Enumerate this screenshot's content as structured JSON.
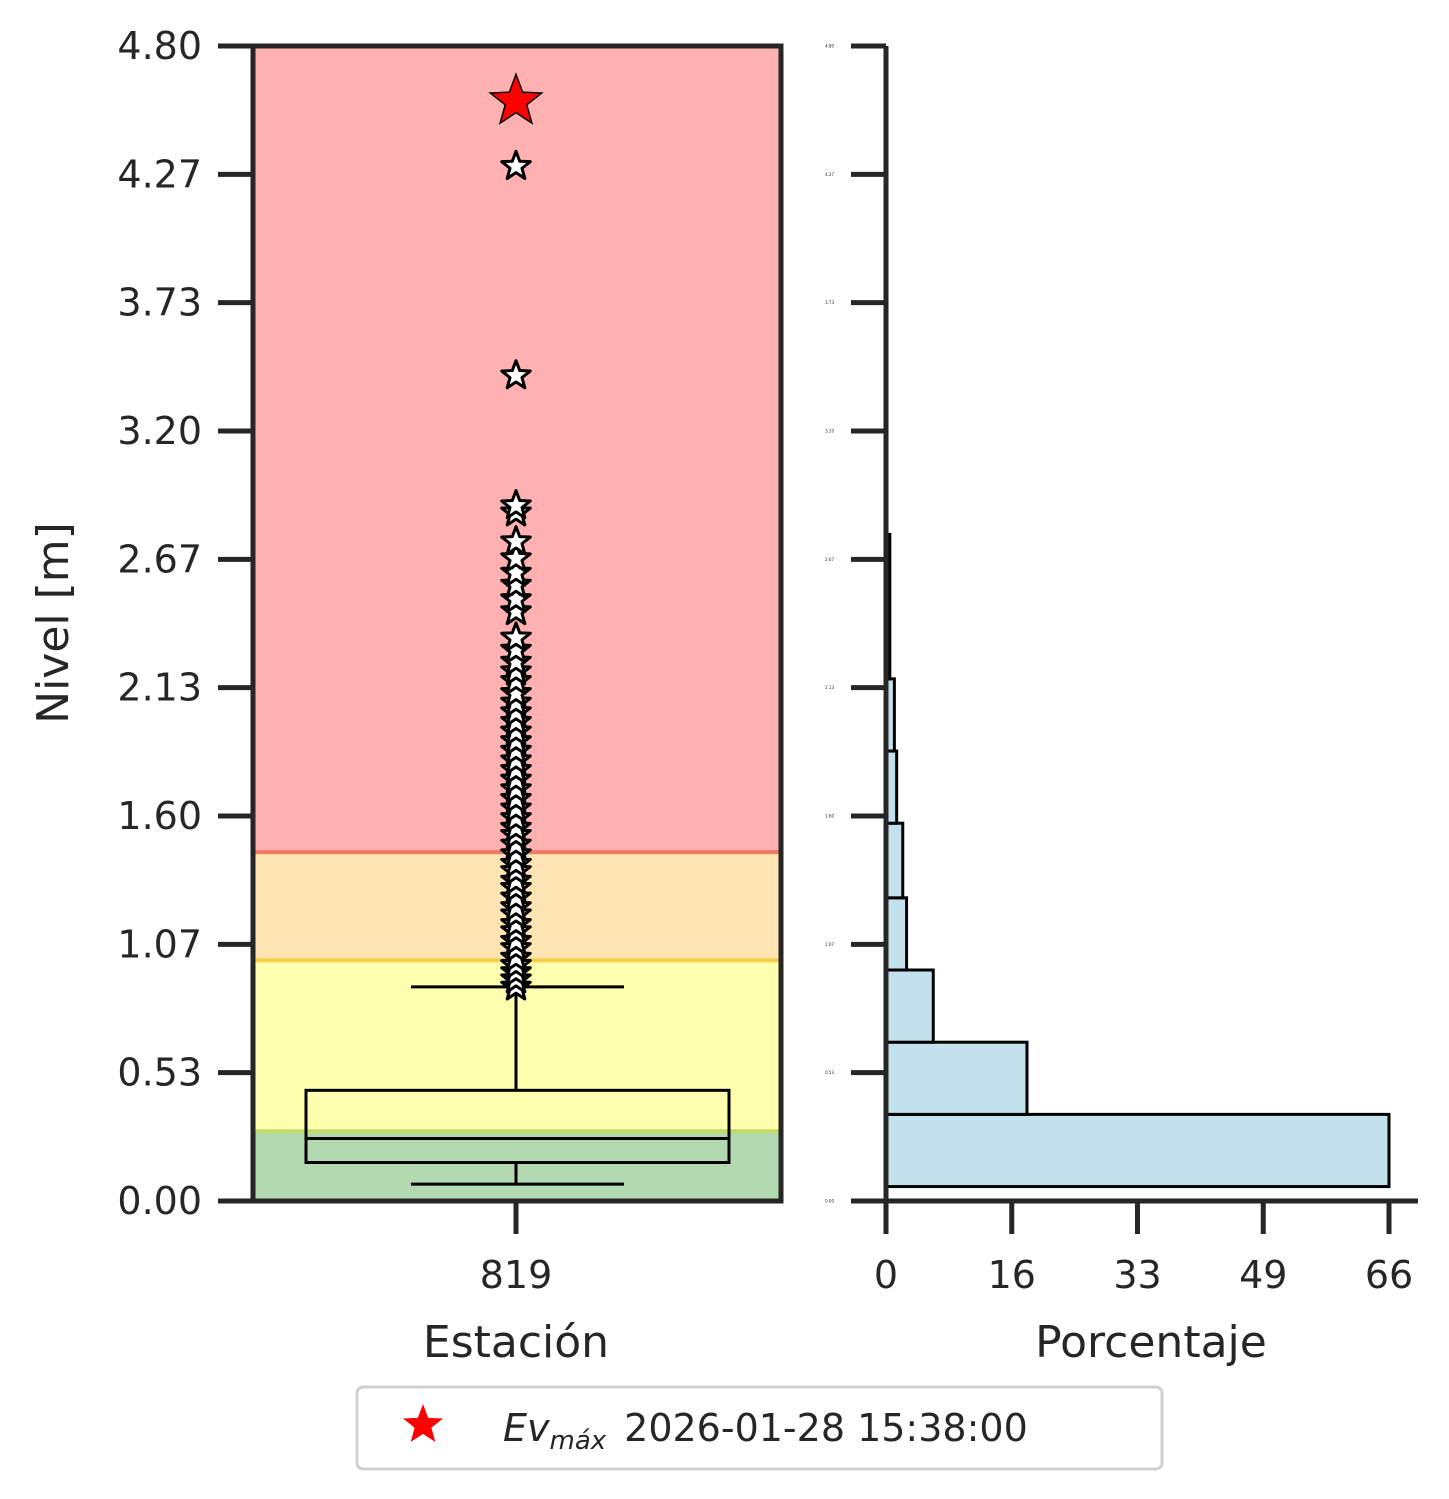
{
  "chart_data": [
    {
      "type": "boxplot",
      "xlabel": "Estación",
      "ylabel": "Nivel [m]",
      "categories": [
        "819"
      ],
      "ylim": [
        0.0,
        4.8
      ],
      "yticks": [
        "0.00",
        "0.53",
        "1.07",
        "1.60",
        "2.13",
        "2.67",
        "3.20",
        "3.73",
        "4.27",
        "4.80"
      ],
      "bands": [
        {
          "from": 0.0,
          "to": 0.29,
          "color": "#b3d9b0"
        },
        {
          "from": 0.29,
          "to": 1.0,
          "color": "#ffffb0"
        },
        {
          "from": 1.0,
          "to": 1.45,
          "color": "#ffe4b3"
        },
        {
          "from": 1.45,
          "to": 4.8,
          "color": "#ffb1b1"
        }
      ],
      "band_lines": [
        {
          "value": 0.29,
          "color": "#c5d96b"
        },
        {
          "value": 1.0,
          "color": "#f5cf4a"
        },
        {
          "value": 1.45,
          "color": "#f07a64"
        }
      ],
      "box": {
        "whisker_low": 0.07,
        "q1": 0.16,
        "median": 0.26,
        "q3": 0.46,
        "whisker_high": 0.89
      },
      "outliers": [
        0.89,
        0.92,
        0.95,
        0.98,
        1.01,
        1.05,
        1.08,
        1.12,
        1.15,
        1.19,
        1.22,
        1.26,
        1.3,
        1.33,
        1.37,
        1.4,
        1.44,
        1.48,
        1.52,
        1.55,
        1.59,
        1.63,
        1.67,
        1.71,
        1.75,
        1.79,
        1.83,
        1.87,
        1.91,
        1.95,
        1.99,
        2.03,
        2.07,
        2.11,
        2.16,
        2.2,
        2.24,
        2.29,
        2.34,
        2.45,
        2.5,
        2.56,
        2.61,
        2.67,
        2.74,
        2.86,
        2.89,
        3.43,
        4.3
      ],
      "max_event": {
        "value": 4.57,
        "color": "#ff0000"
      }
    },
    {
      "type": "bar",
      "orientation": "horizontal",
      "xlabel": "Porcentaje",
      "xlim": [
        0,
        66
      ],
      "xticks": [
        "0",
        "16",
        "33",
        "49",
        "66"
      ],
      "yticks": [
        "0.00",
        "0.53",
        "1.07",
        "1.60",
        "2.13",
        "2.67",
        "3.20",
        "3.73",
        "4.27",
        "4.80"
      ],
      "bar_color": "#c2e1ec",
      "bins": [
        {
          "from": 0.06,
          "to": 0.36,
          "value": 66.0
        },
        {
          "from": 0.36,
          "to": 0.66,
          "value": 18.5
        },
        {
          "from": 0.66,
          "to": 0.96,
          "value": 6.2
        },
        {
          "from": 0.96,
          "to": 1.26,
          "value": 2.7
        },
        {
          "from": 1.26,
          "to": 1.57,
          "value": 2.2
        },
        {
          "from": 1.57,
          "to": 1.87,
          "value": 1.4
        },
        {
          "from": 1.87,
          "to": 2.17,
          "value": 1.1
        },
        {
          "from": 2.17,
          "to": 2.77,
          "value": 0.5
        }
      ]
    }
  ],
  "legend": {
    "marker_color": "#ff0000",
    "label_base": "Ev",
    "label_sub": "máx",
    "label_date": "2026-01-28 15:38:00"
  }
}
